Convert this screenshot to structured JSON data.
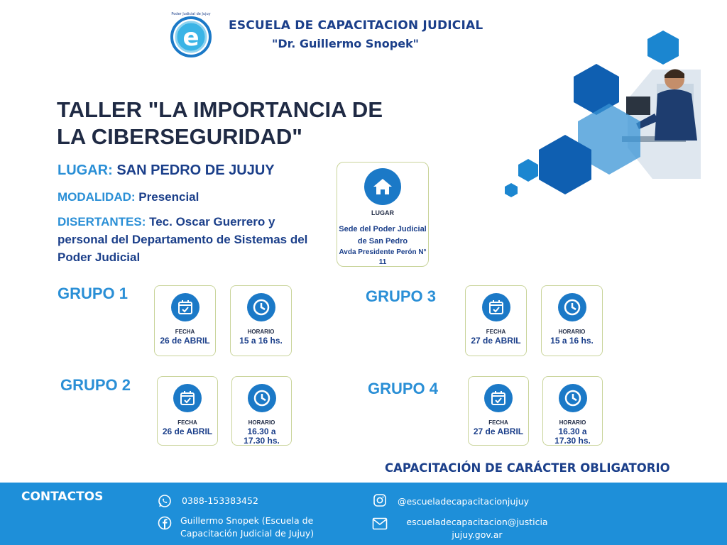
{
  "header": {
    "logo_text": "Poder Judicial de Jujuy",
    "school_name": "ESCUELA DE CAPACITACION JUDICIAL",
    "school_sub": "\"Dr. Guillermo Snopek\""
  },
  "title": "TALLER \"LA IMPORTANCIA DE LA CIBERSEGURIDAD\"",
  "details": {
    "lugar_label": "LUGAR:",
    "lugar_value": "SAN PEDRO DE JUJUY",
    "modalidad_label": "MODALIDAD:",
    "modalidad_value": "Presencial",
    "disertantes_label": "DISERTANTES:",
    "disertantes_value": "Tec. Oscar Guerrero y personal del Departamento de Sistemas del Poder Judicial"
  },
  "lugar_card": {
    "caption": "LUGAR",
    "line1": "Sede del Poder Judicial de San Pedro",
    "line2": "Avda Presidente Perón N° 11"
  },
  "groups": [
    {
      "label": "GRUPO 1",
      "fecha_caption": "FECHA",
      "fecha": "26 de ABRIL",
      "horario_caption": "HORARIO",
      "horario": "15 a 16 hs."
    },
    {
      "label": "GRUPO 2",
      "fecha_caption": "FECHA",
      "fecha": "26 de ABRIL",
      "horario_caption": "HORARIO",
      "horario": "16.30 a 17.30 hs."
    },
    {
      "label": "GRUPO 3",
      "fecha_caption": "FECHA",
      "fecha": "27 de ABRIL",
      "horario_caption": "HORARIO",
      "horario": "15 a 16 hs."
    },
    {
      "label": "GRUPO 4",
      "fecha_caption": "FECHA",
      "fecha": "27 de ABRIL",
      "horario_caption": "HORARIO",
      "horario": "16.30 a 17.30 hs."
    }
  ],
  "obligatorio": "CAPACITACIÓN DE CARÁCTER OBLIGATORIO",
  "footer": {
    "title": "CONTACTOS",
    "phone": "0388-153383452",
    "facebook": "Guillermo Snopek (Escuela de Capacitación Judicial de Jujuy)",
    "instagram": "@escueladecapacitacionjujuy",
    "email": "escueladecapacitacion@justicia jujuy.gov.ar"
  },
  "colors": {
    "primary": "#1b79c7",
    "accent": "#2a8fd6",
    "navy": "#1b3f8a",
    "footer": "#1e8fd9"
  },
  "icons": [
    "logo-e-icon",
    "house-icon",
    "calendar-check-icon",
    "clock-icon",
    "whatsapp-icon",
    "facebook-icon",
    "instagram-icon",
    "mail-icon"
  ]
}
